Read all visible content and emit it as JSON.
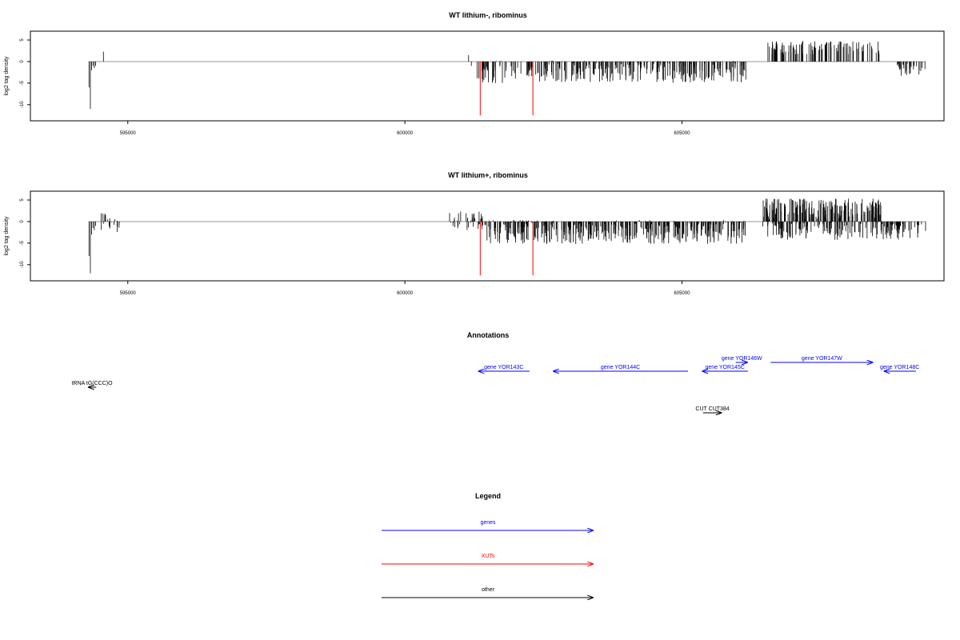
{
  "colors": {
    "genes": "#0000ff",
    "XUTs": "#ff0000",
    "other": "#000000",
    "signal": "#000000",
    "baseline": "#999999"
  },
  "chart_data": [
    {
      "type": "bar",
      "title": "WT lithium-, ribominus",
      "ylabel": "log2 tag density",
      "ylim": [
        -13,
        6.3
      ],
      "xlim": [
        593300,
        609700
      ],
      "yticks": [
        5,
        0,
        -5,
        -10
      ],
      "xticks": [
        595000,
        600000,
        605000
      ],
      "xtick_labels": [
        "595000",
        "600000",
        "605000"
      ],
      "segments": [
        {
          "kind": "bar",
          "x0": 594300,
          "x1": 594420,
          "values": [
            -6,
            -11,
            -2,
            -1,
            -1.5,
            -1
          ]
        },
        {
          "kind": "bar",
          "x0": 594560,
          "x1": 594560,
          "values": [
            2.3
          ]
        },
        {
          "kind": "bar",
          "x0": 601150,
          "x1": 601200,
          "values": [
            1.5,
            -1
          ]
        },
        {
          "kind": "bar",
          "x0": 601300,
          "x1": 606160,
          "range": [
            -5,
            0.2
          ],
          "n": 330,
          "seed": 11
        },
        {
          "kind": "bar",
          "x0": 606550,
          "x1": 608560,
          "range": [
            1.5,
            4.8
          ],
          "n": 110,
          "seed": 23
        },
        {
          "kind": "bar",
          "x0": 608860,
          "x1": 609400,
          "range": [
            -3.3,
            -0.5
          ],
          "n": 32,
          "seed": 7
        }
      ],
      "xuts": [
        {
          "x": 601360,
          "ymin": -12.5,
          "ymax": 0
        },
        {
          "x": 602310,
          "ymin": -12.5,
          "ymax": 0
        }
      ]
    },
    {
      "type": "bar",
      "title": "WT lithium+, ribominus",
      "ylabel": "log2 tag density",
      "ylim": [
        -13,
        6.3
      ],
      "xlim": [
        593300,
        609700
      ],
      "yticks": [
        5,
        0,
        -5,
        -10
      ],
      "xticks": [
        595000,
        600000,
        605000
      ],
      "xtick_labels": [
        "595000",
        "600000",
        "605000"
      ],
      "segments": [
        {
          "kind": "bar",
          "x0": 594300,
          "x1": 594420,
          "values": [
            -8,
            -12,
            -3,
            -1.5,
            -2,
            -1
          ]
        },
        {
          "kind": "bar",
          "x0": 594500,
          "x1": 594850,
          "range": [
            -3,
            2.6
          ],
          "n": 22,
          "seed": 5
        },
        {
          "kind": "bar",
          "x0": 600800,
          "x1": 601400,
          "range": [
            -2,
            2.5
          ],
          "n": 40,
          "seed": 13
        },
        {
          "kind": "bar",
          "x0": 601400,
          "x1": 606160,
          "range": [
            -5.2,
            0.4
          ],
          "n": 420,
          "seed": 19
        },
        {
          "kind": "bar",
          "x0": 606450,
          "x1": 608640,
          "range": [
            0.6,
            5.4
          ],
          "n": 200,
          "seed": 29
        },
        {
          "kind": "bar",
          "x0": 606450,
          "x1": 608640,
          "range": [
            -4.3,
            -0.3
          ],
          "n": 120,
          "seed": 31
        },
        {
          "kind": "bar",
          "x0": 608640,
          "x1": 609450,
          "range": [
            -4.2,
            -0.5
          ],
          "n": 50,
          "seed": 37
        }
      ],
      "xuts": [
        {
          "x": 601360,
          "ymin": -12.5,
          "ymax": 0
        },
        {
          "x": 602310,
          "ymin": -12.5,
          "ymax": 0
        }
      ]
    }
  ],
  "annotations": {
    "title": "Annotations",
    "items": [
      {
        "label": "tRNA tG(CCC)O",
        "type": "other",
        "strand": "-",
        "start": 594280,
        "end": 594430,
        "row": 2
      },
      {
        "label": "gene YOR143C",
        "type": "genes",
        "strand": "-",
        "start": 601320,
        "end": 602250,
        "row": 1
      },
      {
        "label": "gene YOR144C",
        "type": "genes",
        "strand": "-",
        "start": 602670,
        "end": 605110,
        "row": 1
      },
      {
        "label": "gene YOR145C",
        "type": "genes",
        "strand": "-",
        "start": 605360,
        "end": 606190,
        "row": 1
      },
      {
        "label": "gene YOR146W",
        "type": "genes",
        "strand": "+",
        "start": 605970,
        "end": 606190,
        "row": 0
      },
      {
        "label": "gene YOR147W",
        "type": "genes",
        "strand": "+",
        "start": 606600,
        "end": 608450,
        "row": 0
      },
      {
        "label": "gene YOR148C",
        "type": "genes",
        "strand": "-",
        "start": 608640,
        "end": 609220,
        "row": 1
      },
      {
        "label": "CUT CUT384",
        "type": "other",
        "strand": "+",
        "start": 605380,
        "end": 605720,
        "row": 3
      }
    ]
  },
  "legend": {
    "title": "Legend",
    "items": [
      {
        "label": "genes",
        "type": "genes"
      },
      {
        "label": "XUTs",
        "type": "XUTs"
      },
      {
        "label": "other",
        "type": "other"
      }
    ]
  }
}
